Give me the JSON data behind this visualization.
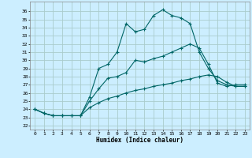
{
  "title": "",
  "xlabel": "Humidex (Indice chaleur)",
  "bg_color": "#cceeff",
  "grid_color": "#aacccc",
  "line_color": "#006666",
  "xlim": [
    -0.5,
    23.5
  ],
  "ylim": [
    21.5,
    37.2
  ],
  "xticks": [
    0,
    1,
    2,
    3,
    4,
    5,
    6,
    7,
    8,
    9,
    10,
    11,
    12,
    13,
    14,
    15,
    16,
    17,
    18,
    19,
    20,
    21,
    22,
    23
  ],
  "yticks": [
    22,
    23,
    24,
    25,
    26,
    27,
    28,
    29,
    30,
    31,
    32,
    33,
    34,
    35,
    36
  ],
  "series": [
    [
      24.0,
      23.5,
      23.2,
      23.2,
      23.2,
      23.2,
      25.5,
      29.0,
      29.5,
      31.0,
      34.5,
      33.5,
      33.8,
      35.5,
      36.2,
      35.5,
      35.2,
      34.5,
      31.0,
      29.0,
      27.5,
      27.0,
      26.8,
      26.8
    ],
    [
      24.0,
      23.5,
      23.2,
      23.2,
      23.2,
      23.2,
      25.0,
      26.5,
      27.8,
      28.0,
      28.5,
      30.0,
      29.8,
      30.2,
      30.5,
      31.0,
      31.5,
      32.0,
      31.5,
      29.5,
      27.2,
      26.8,
      27.0,
      27.0
    ],
    [
      24.0,
      23.5,
      23.2,
      23.2,
      23.2,
      23.2,
      24.2,
      24.8,
      25.3,
      25.6,
      26.0,
      26.3,
      26.5,
      26.8,
      27.0,
      27.2,
      27.5,
      27.7,
      28.0,
      28.2,
      28.0,
      27.3,
      26.8,
      26.8
    ]
  ]
}
